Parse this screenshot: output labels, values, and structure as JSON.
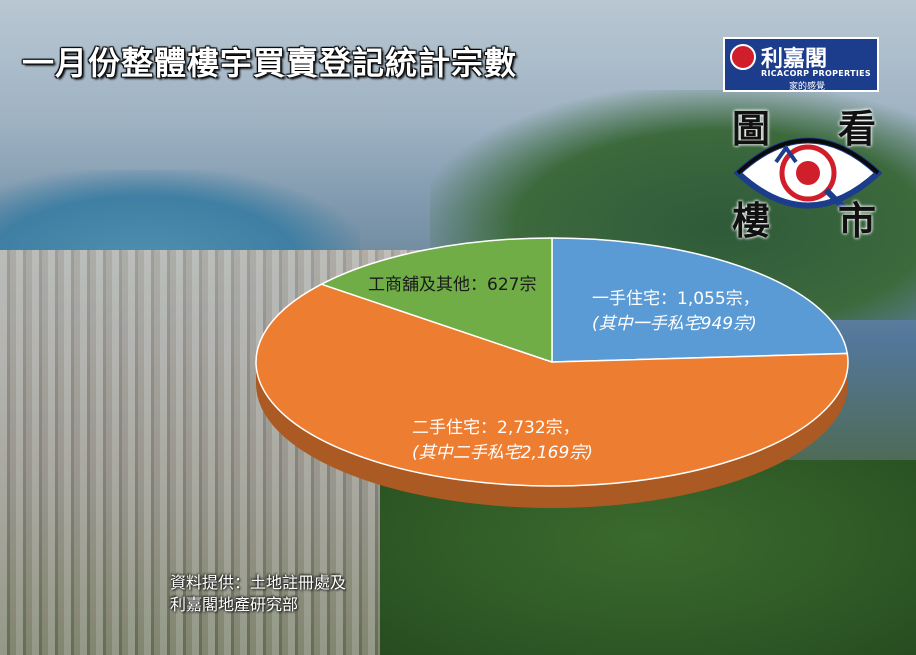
{
  "title": "一月份整體樓宇買賣登記統計宗數",
  "logo": {
    "name_cn": "利嘉閣",
    "name_en": "RICACORP PROPERTIES",
    "tagline": "家的感覺"
  },
  "badge": {
    "chars": [
      "圖",
      "看",
      "樓",
      "市"
    ]
  },
  "colors": {
    "first_hand": "#5b9bd5",
    "second_hand": "#ed7d31",
    "commercial": "#70ad47"
  },
  "chart_data": {
    "type": "pie",
    "slices": [
      {
        "label": "一手住宅：1,055宗，",
        "sub_label": "(其中一手私宅949宗)",
        "value": 1055,
        "color": "#5b9bd5"
      },
      {
        "label": "二手住宅：2,732宗，",
        "sub_label": "(其中二手私宅2,169宗)",
        "value": 2732,
        "color": "#ed7d31"
      },
      {
        "label": "工商舖及其他：627宗",
        "sub_label": "",
        "value": 627,
        "color": "#70ad47"
      }
    ]
  },
  "source": {
    "line1": "資料提供：土地註冊處及",
    "line2": "利嘉閣地產研究部"
  }
}
